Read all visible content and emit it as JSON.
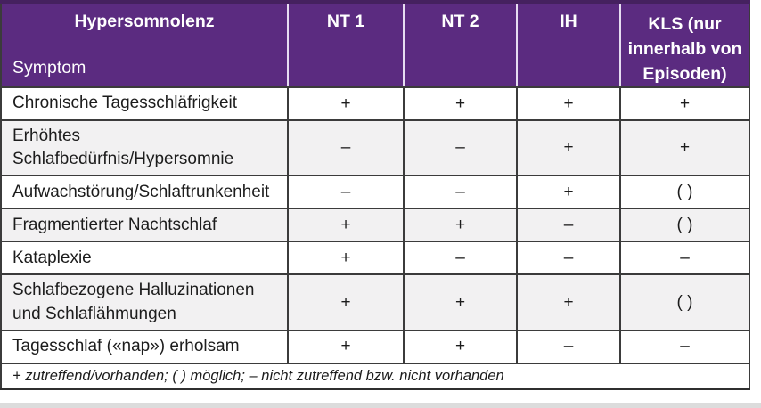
{
  "table": {
    "header": {
      "col1_title": "Hypersomnolenz",
      "col1_subtitle": "Symptom",
      "columns": [
        "NT 1",
        "NT 2",
        "IH",
        "KLS (nur innerhalb von Episoden)"
      ]
    },
    "rows": [
      {
        "symptom": "Chronische Tagesschläfrigkeit",
        "values": [
          "+",
          "+",
          "+",
          "+"
        ]
      },
      {
        "symptom": "Erhöhtes Schlafbedürfnis/Hypersomnie",
        "values": [
          "–",
          "–",
          "+",
          "+"
        ]
      },
      {
        "symptom": "Aufwachstörung/Schlaftrunkenheit",
        "values": [
          "–",
          "–",
          "+",
          "( )"
        ]
      },
      {
        "symptom": "Fragmentierter Nachtschlaf",
        "values": [
          "+",
          "+",
          "–",
          "( )"
        ]
      },
      {
        "symptom": "Kataplexie",
        "values": [
          "+",
          "–",
          "–",
          "–"
        ]
      },
      {
        "symptom": "Schlafbezogene Halluzinationen und Schlaflähmungen",
        "values": [
          "+",
          "+",
          "+",
          "( )"
        ]
      },
      {
        "symptom": "Tagesschlaf («nap») erholsam",
        "values": [
          "+",
          "+",
          "–",
          "–"
        ]
      }
    ],
    "footnote": "+ zutreffend/vorhanden; ( ) möglich; – nicht zutreffend bzw. nicht vorhanden"
  },
  "colors": {
    "header_bg": "#5b2b80",
    "header_top_border": "#45215f",
    "header_text": "#ffffff",
    "body_border": "#3b3b3b",
    "row_alt_bg": "#f2f1f2",
    "text": "#1c1c1c",
    "page_band": "#dcdcdc"
  }
}
